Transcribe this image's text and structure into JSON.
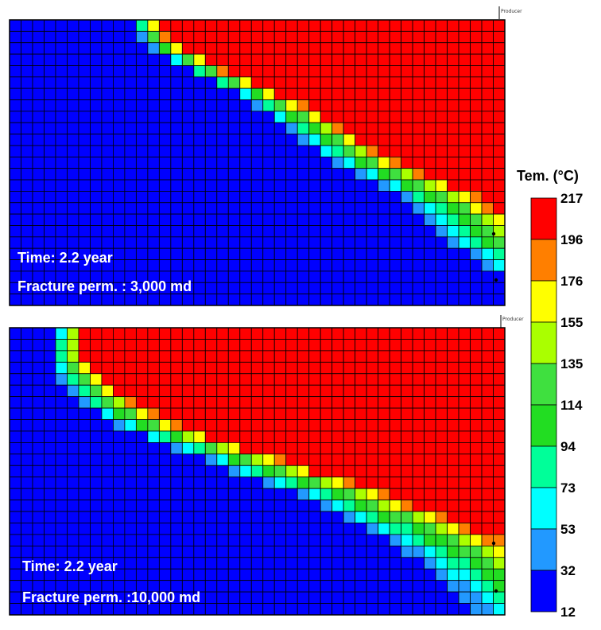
{
  "colorbar": {
    "title": "Tem. (°C)",
    "ticks": [
      "217",
      "196",
      "176",
      "155",
      "135",
      "114",
      "94",
      "73",
      "53",
      "32",
      "12"
    ],
    "colors": [
      "#ff0000",
      "#ff7f00",
      "#ffff00",
      "#aaff00",
      "#3fe03f",
      "#22dd22",
      "#00ff99",
      "#00ffff",
      "#2299ff",
      "#0000ff"
    ]
  },
  "panels": [
    {
      "time_label": "Time: 2.2 year",
      "perm_label": "Fracture perm. : 3,000 md",
      "well_label": "Producer"
    },
    {
      "time_label": "Time: 2.2 year",
      "perm_label": "Fracture perm. :10,000 md",
      "well_label": "Producer"
    }
  ],
  "chart_data": [
    {
      "type": "heatmap",
      "title": "",
      "grid": {
        "columns": 43,
        "rows": 25
      },
      "value_range": [
        12,
        217
      ],
      "unit": "°C",
      "annotations": [
        "Time: 2.2 year",
        "Fracture perm. : 3,000 md"
      ],
      "front_rows_0_to_1": [
        [
          0.0,
          0.245
        ],
        [
          0.05,
          0.255
        ],
        [
          0.1,
          0.285
        ],
        [
          0.15,
          0.33
        ],
        [
          0.2,
          0.38
        ],
        [
          0.25,
          0.44
        ],
        [
          0.3,
          0.49
        ],
        [
          0.35,
          0.53
        ],
        [
          0.4,
          0.57
        ],
        [
          0.45,
          0.6
        ],
        [
          0.5,
          0.645
        ],
        [
          0.55,
          0.7
        ],
        [
          0.6,
          0.76
        ],
        [
          0.65,
          0.8
        ],
        [
          0.7,
          0.83
        ],
        [
          0.75,
          0.86
        ],
        [
          0.8,
          0.89
        ],
        [
          0.85,
          0.94
        ],
        [
          0.9,
          0.98
        ],
        [
          0.95,
          1.02
        ],
        [
          1.0,
          1.06
        ]
      ],
      "front_width_cols": [
        2,
        11
      ]
    },
    {
      "type": "heatmap",
      "title": "",
      "grid": {
        "columns": 43,
        "rows": 25
      },
      "value_range": [
        12,
        217
      ],
      "unit": "°C",
      "annotations": [
        "Time: 2.2 year",
        "Fracture perm. :10,000 md"
      ],
      "front_rows_0_to_1": [
        [
          0.0,
          0.095
        ],
        [
          0.05,
          0.085
        ],
        [
          0.1,
          0.08
        ],
        [
          0.15,
          0.085
        ],
        [
          0.2,
          0.1
        ],
        [
          0.25,
          0.13
        ],
        [
          0.3,
          0.17
        ],
        [
          0.35,
          0.22
        ],
        [
          0.4,
          0.29
        ],
        [
          0.45,
          0.37
        ],
        [
          0.5,
          0.44
        ],
        [
          0.55,
          0.52
        ],
        [
          0.6,
          0.59
        ],
        [
          0.65,
          0.65
        ],
        [
          0.7,
          0.71
        ],
        [
          0.75,
          0.76
        ],
        [
          0.8,
          0.8
        ],
        [
          0.85,
          0.84
        ],
        [
          0.9,
          0.87
        ],
        [
          0.95,
          0.9
        ],
        [
          1.0,
          0.92
        ]
      ],
      "front_width_cols": [
        2,
        14
      ]
    }
  ]
}
